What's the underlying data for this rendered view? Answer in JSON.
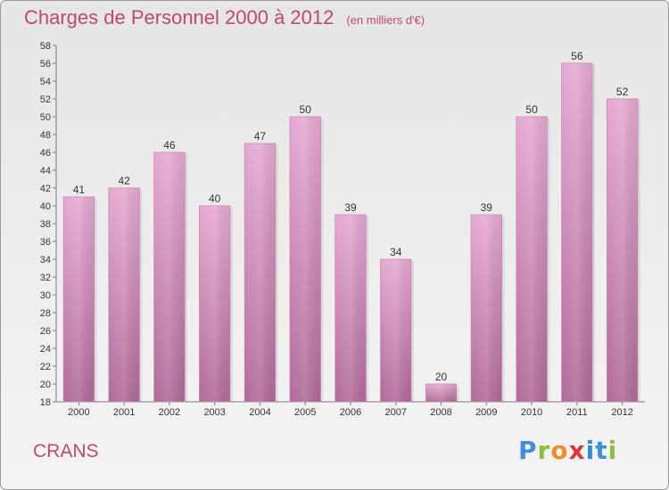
{
  "title": "Charges de Personnel 2000 à 2012",
  "subtitle": "(en milliers d'€)",
  "commune": "CRANS",
  "brand": "Proxiti",
  "colors": {
    "bar": "#d98fbc",
    "title": "#c0486e",
    "axis": "#7a7a7a"
  },
  "chart_data": {
    "type": "bar",
    "title": "Charges de Personnel 2000 à 2012",
    "subtitle": "(en milliers d'€)",
    "xlabel": "",
    "ylabel": "",
    "categories": [
      "2000",
      "2001",
      "2002",
      "2003",
      "2004",
      "2005",
      "2006",
      "2007",
      "2008",
      "2009",
      "2010",
      "2011",
      "2012"
    ],
    "values": [
      41,
      42,
      46,
      40,
      47,
      50,
      39,
      34,
      20,
      39,
      50,
      56,
      52
    ],
    "ylim": [
      18,
      58
    ],
    "yticks": [
      18,
      20,
      22,
      24,
      26,
      28,
      30,
      32,
      34,
      36,
      38,
      40,
      42,
      44,
      46,
      48,
      50,
      52,
      54,
      56,
      58
    ],
    "grid": false,
    "legend": "none"
  }
}
